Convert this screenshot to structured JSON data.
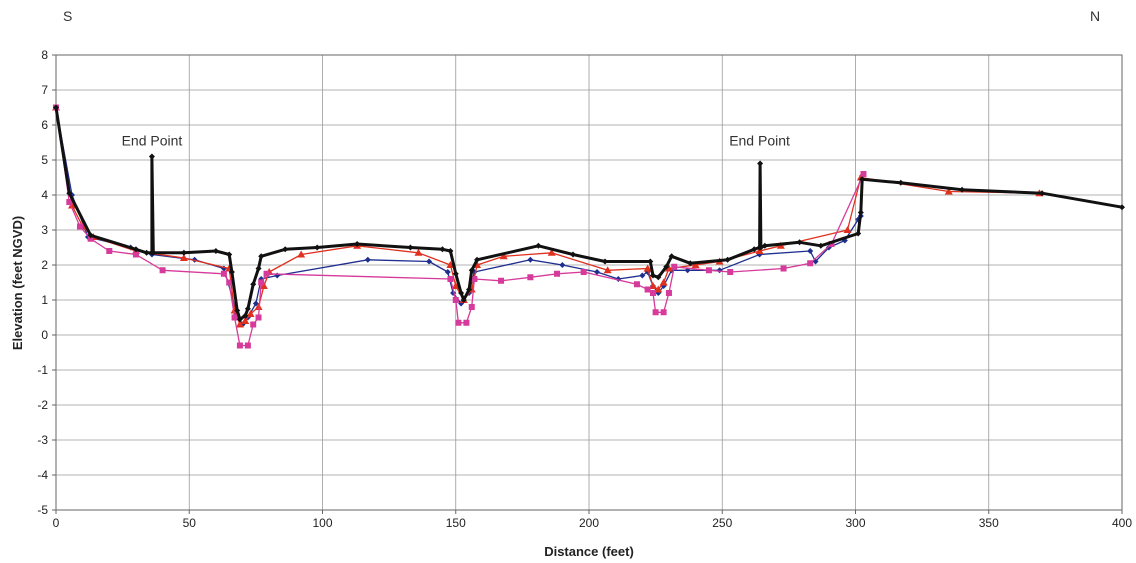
{
  "chart_data": {
    "type": "line",
    "title": "",
    "xlabel": "Distance (feet)",
    "ylabel": "Elevation (feet NGVD)",
    "xlim": [
      0,
      400
    ],
    "ylim": [
      -5,
      8
    ],
    "xticks": [
      0,
      50,
      100,
      150,
      200,
      250,
      300,
      350,
      400
    ],
    "yticks": [
      -5,
      -4,
      -3,
      -2,
      -1,
      0,
      1,
      2,
      3,
      4,
      5,
      6,
      7,
      8
    ],
    "grid": true,
    "legend": "none",
    "corner_labels": {
      "left": "S",
      "right": "N"
    },
    "annotations": [
      {
        "text": "End Point",
        "x": 36,
        "y": 5.3
      },
      {
        "text": "End Point",
        "x": 264,
        "y": 5.3
      }
    ],
    "series": [
      {
        "color": "#1f2f8f",
        "marker": "diamond",
        "points": [
          [
            0,
            6.5
          ],
          [
            6,
            4.0
          ],
          [
            12,
            2.8
          ],
          [
            28,
            2.5
          ],
          [
            36,
            2.3
          ],
          [
            52,
            2.15
          ],
          [
            63,
            1.9
          ],
          [
            68,
            0.6
          ],
          [
            70,
            0.3
          ],
          [
            72,
            0.5
          ],
          [
            75,
            0.9
          ],
          [
            77,
            1.6
          ],
          [
            83,
            1.7
          ],
          [
            117,
            2.15
          ],
          [
            140,
            2.1
          ],
          [
            147,
            1.8
          ],
          [
            149,
            1.2
          ],
          [
            152,
            0.9
          ],
          [
            155,
            1.2
          ],
          [
            157,
            1.8
          ],
          [
            178,
            2.15
          ],
          [
            190,
            2.0
          ],
          [
            203,
            1.8
          ],
          [
            211,
            1.6
          ],
          [
            220,
            1.7
          ],
          [
            222,
            1.8
          ],
          [
            224,
            1.4
          ],
          [
            226,
            1.2
          ],
          [
            228,
            1.4
          ],
          [
            231,
            1.85
          ],
          [
            237,
            1.85
          ],
          [
            249,
            1.85
          ],
          [
            264,
            2.3
          ],
          [
            283,
            2.4
          ],
          [
            285,
            2.1
          ],
          [
            290,
            2.5
          ],
          [
            296,
            2.7
          ],
          [
            301,
            3.3
          ],
          [
            302,
            3.4
          ],
          [
            302.5,
            4.55
          ]
        ]
      },
      {
        "color": "#e0301e",
        "marker": "triangle",
        "points": [
          [
            0,
            6.5
          ],
          [
            6,
            3.7
          ],
          [
            10,
            3.1
          ],
          [
            14,
            2.8
          ],
          [
            30,
            2.4
          ],
          [
            48,
            2.2
          ],
          [
            65,
            1.9
          ],
          [
            67,
            0.7
          ],
          [
            69,
            0.3
          ],
          [
            71,
            0.4
          ],
          [
            73,
            0.6
          ],
          [
            76,
            0.8
          ],
          [
            78,
            1.4
          ],
          [
            80,
            1.8
          ],
          [
            92,
            2.3
          ],
          [
            113,
            2.55
          ],
          [
            136,
            2.35
          ],
          [
            148,
            2.0
          ],
          [
            150,
            1.4
          ],
          [
            153,
            1.0
          ],
          [
            156,
            1.3
          ],
          [
            158,
            2.0
          ],
          [
            168,
            2.25
          ],
          [
            186,
            2.35
          ],
          [
            207,
            1.85
          ],
          [
            222,
            1.9
          ],
          [
            224,
            1.4
          ],
          [
            226,
            1.3
          ],
          [
            228,
            1.5
          ],
          [
            230,
            1.9
          ],
          [
            240,
            2.0
          ],
          [
            249,
            2.1
          ],
          [
            264,
            2.4
          ],
          [
            272,
            2.55
          ],
          [
            297,
            3.0
          ],
          [
            302,
            4.5
          ],
          [
            335,
            4.1
          ],
          [
            369,
            4.05
          ]
        ]
      },
      {
        "color": "#d63a9a",
        "marker": "square",
        "points": [
          [
            0,
            6.5
          ],
          [
            5,
            3.8
          ],
          [
            9,
            3.1
          ],
          [
            13,
            2.75
          ],
          [
            20,
            2.4
          ],
          [
            30,
            2.3
          ],
          [
            40,
            1.85
          ],
          [
            63,
            1.75
          ],
          [
            65,
            1.5
          ],
          [
            67,
            0.5
          ],
          [
            69,
            -0.3
          ],
          [
            72,
            -0.3
          ],
          [
            74,
            0.3
          ],
          [
            76,
            0.5
          ],
          [
            77,
            1.5
          ],
          [
            79,
            1.75
          ],
          [
            148,
            1.6
          ],
          [
            150,
            1.0
          ],
          [
            151,
            0.35
          ],
          [
            154,
            0.35
          ],
          [
            156,
            0.8
          ],
          [
            157,
            1.6
          ],
          [
            167,
            1.55
          ],
          [
            178,
            1.65
          ],
          [
            188,
            1.75
          ],
          [
            198,
            1.8
          ],
          [
            218,
            1.45
          ],
          [
            222,
            1.3
          ],
          [
            224,
            1.2
          ],
          [
            225,
            0.65
          ],
          [
            228,
            0.65
          ],
          [
            230,
            1.2
          ],
          [
            232,
            1.95
          ],
          [
            245,
            1.85
          ],
          [
            253,
            1.8
          ],
          [
            273,
            1.9
          ],
          [
            283,
            2.05
          ],
          [
            291,
            2.6
          ],
          [
            303,
            4.6
          ]
        ]
      },
      {
        "color": "#111111",
        "marker": "diamond",
        "width": 3,
        "points": [
          [
            0,
            6.5
          ],
          [
            5,
            4.05
          ],
          [
            13,
            2.85
          ],
          [
            30,
            2.45
          ],
          [
            34,
            2.35
          ],
          [
            36,
            2.35
          ],
          [
            36,
            5.1
          ],
          [
            36.5,
            2.35
          ],
          [
            48,
            2.35
          ],
          [
            60,
            2.4
          ],
          [
            65,
            2.3
          ],
          [
            66,
            1.8
          ],
          [
            68,
            0.7
          ],
          [
            69,
            0.45
          ],
          [
            71,
            0.55
          ],
          [
            72,
            0.75
          ],
          [
            74,
            1.45
          ],
          [
            76,
            1.9
          ],
          [
            77,
            2.25
          ],
          [
            86,
            2.45
          ],
          [
            98,
            2.5
          ],
          [
            113,
            2.6
          ],
          [
            133,
            2.5
          ],
          [
            145,
            2.45
          ],
          [
            148,
            2.4
          ],
          [
            150,
            1.75
          ],
          [
            152,
            1.2
          ],
          [
            153,
            1.0
          ],
          [
            155,
            1.3
          ],
          [
            156,
            1.85
          ],
          [
            158,
            2.15
          ],
          [
            181,
            2.55
          ],
          [
            194,
            2.3
          ],
          [
            206,
            2.1
          ],
          [
            223,
            2.1
          ],
          [
            224,
            1.7
          ],
          [
            226,
            1.65
          ],
          [
            229,
            1.95
          ],
          [
            231,
            2.25
          ],
          [
            238,
            2.05
          ],
          [
            252,
            2.15
          ],
          [
            262,
            2.45
          ],
          [
            264,
            2.5
          ],
          [
            264.2,
            4.9
          ],
          [
            264.5,
            2.5
          ],
          [
            266,
            2.55
          ],
          [
            279,
            2.65
          ],
          [
            287,
            2.55
          ],
          [
            301,
            2.9
          ],
          [
            302,
            3.5
          ],
          [
            302.5,
            4.45
          ],
          [
            317,
            4.35
          ],
          [
            340,
            4.15
          ],
          [
            370,
            4.05
          ],
          [
            400,
            3.65
          ]
        ]
      }
    ]
  }
}
